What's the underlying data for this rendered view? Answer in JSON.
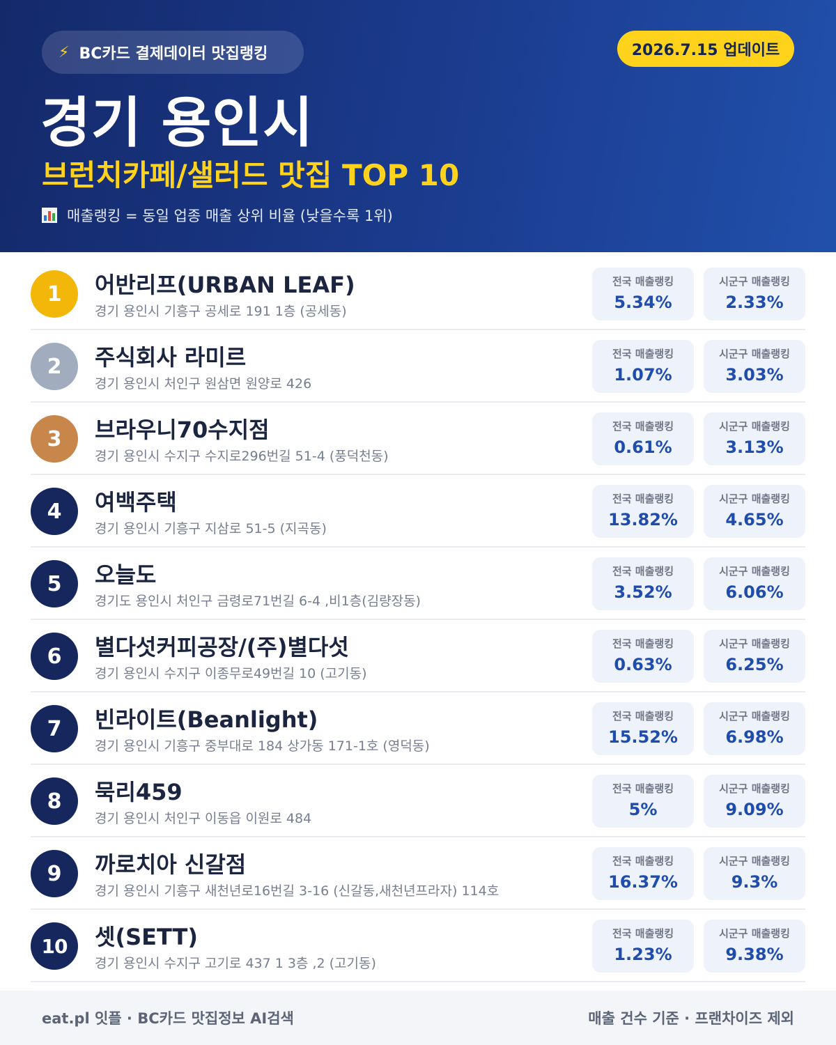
{
  "header": {
    "source": "BC카드 결제데이터 맛집랭킹",
    "bolt_icon": "⚡",
    "update": "2026.7.15 업데이트",
    "city": "경기 용인시",
    "category": "브런치카페/샐러드 맛집 TOP 10",
    "note": "매출랭킹 = 동일 업종 매출 상위 비율 (낮을수록 1위)"
  },
  "labels": {
    "national": "전국 매출랭킹",
    "local": "시군구 매출랭킹"
  },
  "colors": {
    "gold": "#f3b70a",
    "silver": "#a2acbf",
    "bronze": "#c8864a",
    "navy": "#15275c",
    "accent_yellow": "#ffd21c",
    "value_blue": "#1f4dae"
  },
  "restaurants": [
    {
      "rank": "1",
      "name": "어반리프(URBAN LEAF)",
      "address": "경기 용인시 기흥구 공세로 191 1층 (공세동)",
      "national": "5.34%",
      "local": "2.33%"
    },
    {
      "rank": "2",
      "name": "주식회사 라미르",
      "address": "경기 용인시 처인구 원삼면 원양로 426",
      "national": "1.07%",
      "local": "3.03%"
    },
    {
      "rank": "3",
      "name": "브라우니70수지점",
      "address": "경기 용인시 수지구 수지로296번길 51-4 (풍덕천동)",
      "national": "0.61%",
      "local": "3.13%"
    },
    {
      "rank": "4",
      "name": "여백주택",
      "address": "경기 용인시 기흥구 지삼로 51-5 (지곡동)",
      "national": "13.82%",
      "local": "4.65%"
    },
    {
      "rank": "5",
      "name": "오늘도",
      "address": "경기도 용인시 처인구 금령로71번길 6-4 ,비1층(김량장동)",
      "national": "3.52%",
      "local": "6.06%"
    },
    {
      "rank": "6",
      "name": "별다섯커피공장/(주)별다섯",
      "address": "경기 용인시 수지구 이종무로49번길 10 (고기동)",
      "national": "0.63%",
      "local": "6.25%"
    },
    {
      "rank": "7",
      "name": "빈라이트(Beanlight)",
      "address": "경기 용인시 기흥구 중부대로 184 상가동 171-1호 (영덕동)",
      "national": "15.52%",
      "local": "6.98%"
    },
    {
      "rank": "8",
      "name": "묵리459",
      "address": "경기 용인시 처인구 이동읍 이원로 484",
      "national": "5%",
      "local": "9.09%"
    },
    {
      "rank": "9",
      "name": "까로치아 신갈점",
      "address": "경기 용인시 기흥구 새천년로16번길 3-16 (신갈동,새천년프라자) 114호",
      "national": "16.37%",
      "local": "9.3%"
    },
    {
      "rank": "10",
      "name": "셋(SETT)",
      "address": "경기 용인시 수지구 고기로 437 1 3층 ,2 (고기동)",
      "national": "1.23%",
      "local": "9.38%"
    }
  ],
  "footer": {
    "left": "eat.pl 잇플 · BC카드 맛집정보 AI검색",
    "right": "매출 건수 기준 · 프랜차이즈 제외"
  }
}
